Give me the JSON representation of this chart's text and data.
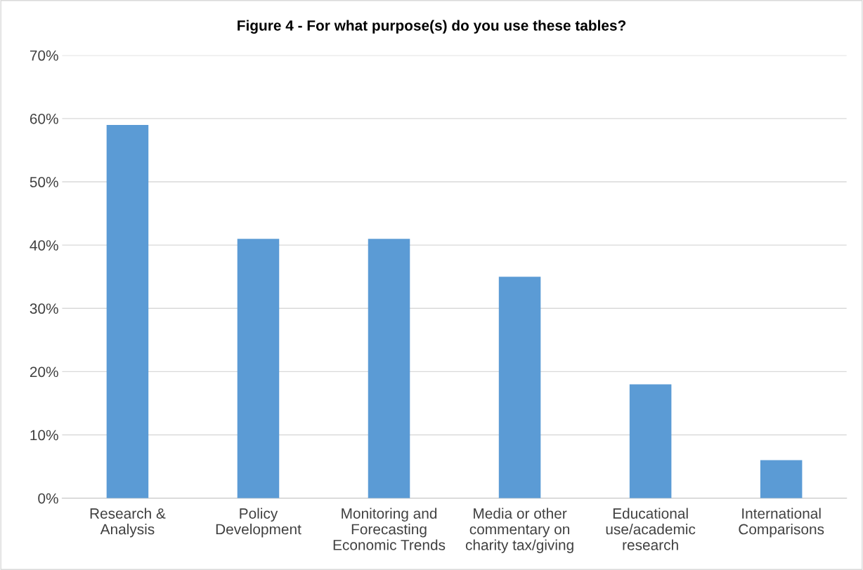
{
  "chart_data": {
    "type": "bar",
    "title": "Figure 4 - For what purpose(s) do you use these tables?",
    "categories": [
      "Research &\nAnalysis",
      "Policy\nDevelopment",
      "Monitoring and\nForecasting\nEconomic Trends",
      "Media or other\ncommentary on\ncharity tax/giving",
      "Educational\nuse/academic\nresearch",
      "International\nComparisons"
    ],
    "values": [
      59,
      41,
      41,
      35,
      18,
      6
    ],
    "color": "#5b9bd5",
    "ylim": [
      0,
      70
    ],
    "yticks": [
      {
        "value": 0,
        "label": "0%"
      },
      {
        "value": 10,
        "label": "10%"
      },
      {
        "value": 20,
        "label": "20%"
      },
      {
        "value": 30,
        "label": "30%"
      },
      {
        "value": 40,
        "label": "40%"
      },
      {
        "value": 50,
        "label": "50%"
      },
      {
        "value": 60,
        "label": "60%"
      },
      {
        "value": 70,
        "label": "70%"
      }
    ],
    "grid": "y"
  }
}
